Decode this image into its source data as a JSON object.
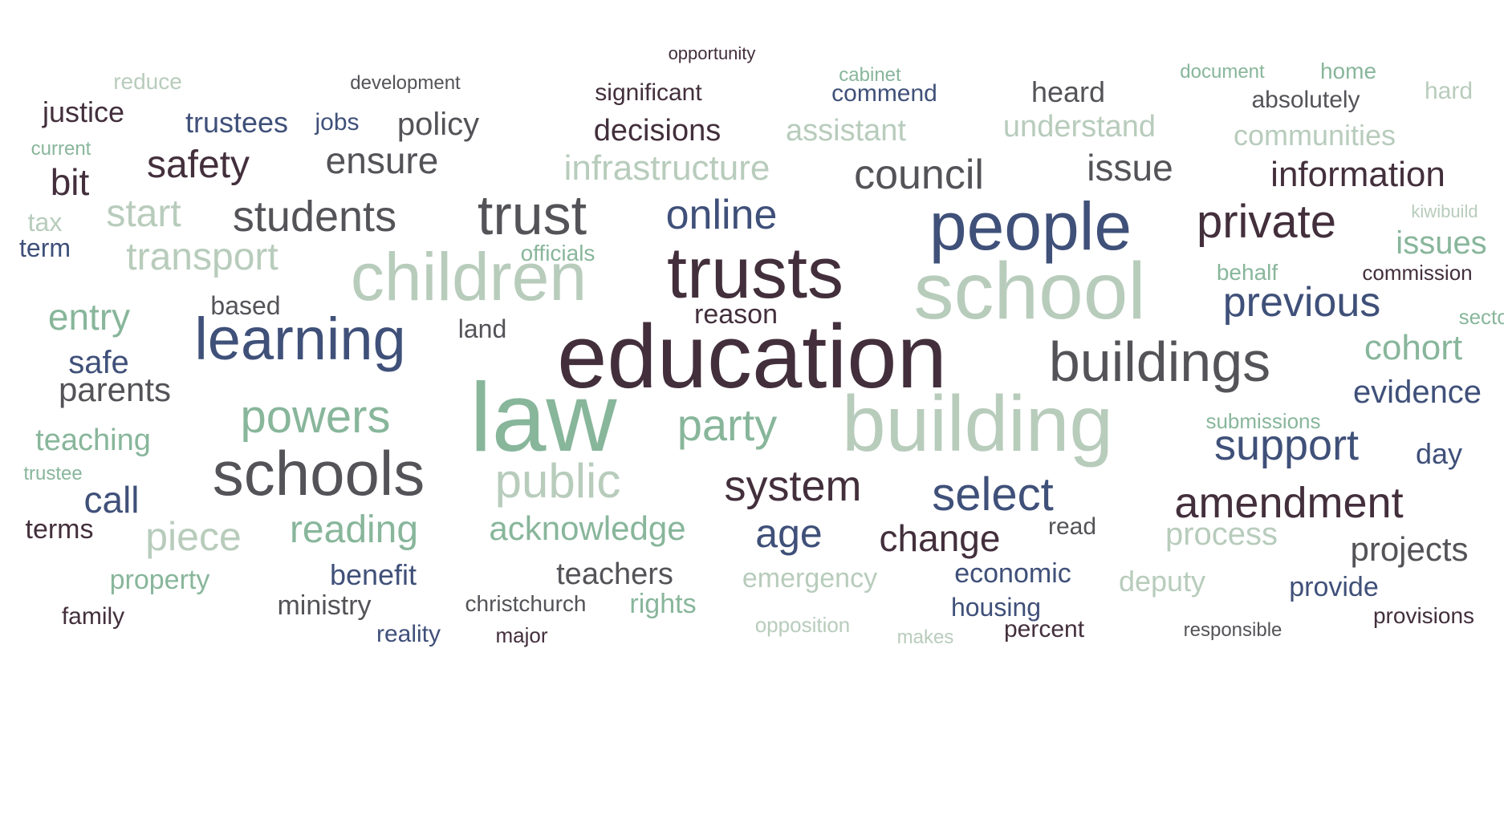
{
  "palette": {
    "plum": "#432f3c",
    "navy": "#3f5079",
    "charcoal": "#535358",
    "sage": "#b8ccbc",
    "green": "#88b69b"
  },
  "words": [
    {
      "text": "education",
      "color": "plum"
    },
    {
      "text": "law",
      "color": "green"
    },
    {
      "text": "building",
      "color": "sage"
    },
    {
      "text": "school",
      "color": "sage"
    },
    {
      "text": "trusts",
      "color": "plum"
    },
    {
      "text": "people",
      "color": "navy"
    },
    {
      "text": "children",
      "color": "sage"
    },
    {
      "text": "schools",
      "color": "charcoal"
    },
    {
      "text": "learning",
      "color": "navy"
    },
    {
      "text": "trust",
      "color": "charcoal"
    },
    {
      "text": "buildings",
      "color": "charcoal"
    },
    {
      "text": "students",
      "color": "charcoal"
    },
    {
      "text": "public",
      "color": "sage"
    },
    {
      "text": "powers",
      "color": "green"
    },
    {
      "text": "select",
      "color": "navy"
    },
    {
      "text": "system",
      "color": "plum"
    },
    {
      "text": "private",
      "color": "plum"
    },
    {
      "text": "party",
      "color": "green"
    },
    {
      "text": "support",
      "color": "navy"
    },
    {
      "text": "online",
      "color": "navy"
    },
    {
      "text": "amendment",
      "color": "plum"
    },
    {
      "text": "council",
      "color": "charcoal"
    },
    {
      "text": "previous",
      "color": "navy"
    },
    {
      "text": "age",
      "color": "navy"
    },
    {
      "text": "piece",
      "color": "sage"
    },
    {
      "text": "reading",
      "color": "green"
    },
    {
      "text": "transport",
      "color": "sage"
    },
    {
      "text": "safety",
      "color": "plum"
    },
    {
      "text": "change",
      "color": "plum"
    },
    {
      "text": "acknowledge",
      "color": "green"
    },
    {
      "text": "infrastructure",
      "color": "sage"
    },
    {
      "text": "information",
      "color": "plum"
    },
    {
      "text": "issue",
      "color": "charcoal"
    },
    {
      "text": "ensure",
      "color": "charcoal"
    },
    {
      "text": "entry",
      "color": "green"
    },
    {
      "text": "start",
      "color": "sage"
    },
    {
      "text": "process",
      "color": "sage"
    },
    {
      "text": "cohort",
      "color": "green"
    },
    {
      "text": "issues",
      "color": "green"
    },
    {
      "text": "bit",
      "color": "plum"
    },
    {
      "text": "projects",
      "color": "charcoal"
    },
    {
      "text": "evidence",
      "color": "navy"
    },
    {
      "text": "call",
      "color": "navy"
    },
    {
      "text": "teaching",
      "color": "green"
    },
    {
      "text": "parents",
      "color": "charcoal"
    },
    {
      "text": "decisions",
      "color": "plum"
    },
    {
      "text": "policy",
      "color": "charcoal"
    },
    {
      "text": "understand",
      "color": "sage"
    },
    {
      "text": "communities",
      "color": "sage"
    },
    {
      "text": "assistant",
      "color": "sage"
    },
    {
      "text": "safe",
      "color": "navy"
    },
    {
      "text": "heard",
      "color": "charcoal"
    },
    {
      "text": "teachers",
      "color": "charcoal"
    },
    {
      "text": "trustees",
      "color": "navy"
    },
    {
      "text": "justice",
      "color": "plum"
    },
    {
      "text": "deputy",
      "color": "sage"
    },
    {
      "text": "day",
      "color": "navy"
    },
    {
      "text": "reason",
      "color": "plum"
    },
    {
      "text": "property",
      "color": "green"
    },
    {
      "text": "benefit",
      "color": "navy"
    },
    {
      "text": "emergency",
      "color": "sage"
    },
    {
      "text": "provide",
      "color": "navy"
    },
    {
      "text": "economic",
      "color": "navy"
    },
    {
      "text": "terms",
      "color": "plum"
    },
    {
      "text": "tax",
      "color": "sage"
    },
    {
      "text": "term",
      "color": "navy"
    },
    {
      "text": "based",
      "color": "charcoal"
    },
    {
      "text": "land",
      "color": "charcoal"
    },
    {
      "text": "ministry",
      "color": "charcoal"
    },
    {
      "text": "rights",
      "color": "green"
    },
    {
      "text": "housing",
      "color": "navy"
    },
    {
      "text": "family",
      "color": "plum"
    },
    {
      "text": "commend",
      "color": "navy"
    },
    {
      "text": "significant",
      "color": "plum"
    },
    {
      "text": "absolutely",
      "color": "charcoal"
    },
    {
      "text": "hard",
      "color": "sage"
    },
    {
      "text": "read",
      "color": "charcoal"
    },
    {
      "text": "reality",
      "color": "navy"
    },
    {
      "text": "percent",
      "color": "plum"
    },
    {
      "text": "provisions",
      "color": "plum"
    },
    {
      "text": "reduce",
      "color": "sage"
    },
    {
      "text": "home",
      "color": "green"
    },
    {
      "text": "behalf",
      "color": "green"
    },
    {
      "text": "sector",
      "color": "green"
    },
    {
      "text": "officials",
      "color": "green"
    },
    {
      "text": "jobs",
      "color": "navy"
    },
    {
      "text": "development",
      "color": "charcoal"
    },
    {
      "text": "christchurch",
      "color": "charcoal"
    },
    {
      "text": "major",
      "color": "plum"
    },
    {
      "text": "opposition",
      "color": "sage"
    },
    {
      "text": "submissions",
      "color": "green"
    },
    {
      "text": "commission",
      "color": "plum"
    },
    {
      "text": "cabinet",
      "color": "green"
    },
    {
      "text": "document",
      "color": "green"
    },
    {
      "text": "current",
      "color": "green"
    },
    {
      "text": "trustee",
      "color": "green"
    },
    {
      "text": "makes",
      "color": "sage"
    },
    {
      "text": "responsible",
      "color": "charcoal"
    },
    {
      "text": "kiwibuild",
      "color": "sage"
    },
    {
      "text": "opportunity",
      "color": "plum"
    }
  ]
}
